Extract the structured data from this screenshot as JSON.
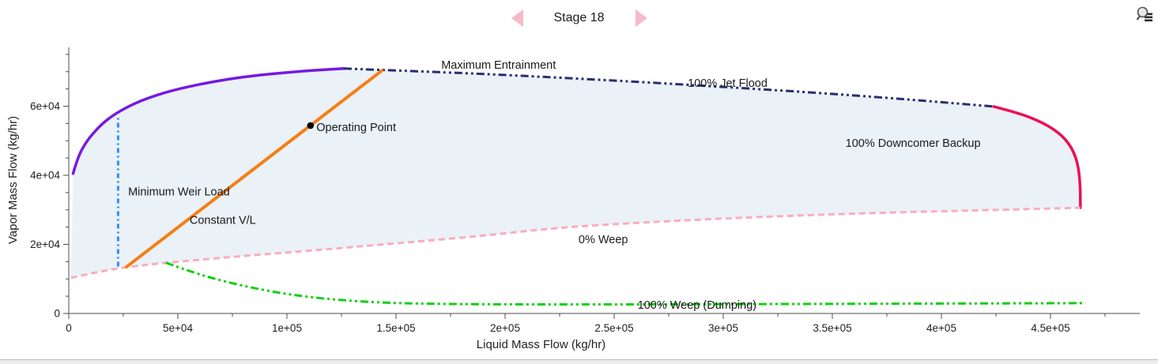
{
  "header": {
    "stage_label": "Stage 18",
    "arrow_color": "#F6B9C9"
  },
  "toolbar": {
    "zoom_properties_icon": "magnifier-with-list"
  },
  "chart_data": {
    "type": "line",
    "title": "",
    "xlabel": "Liquid Mass Flow (kg/hr)",
    "ylabel": "Vapor Mass Flow (kg/hr)",
    "xlim": [
      0,
      493000
    ],
    "ylim": [
      0,
      77000
    ],
    "grid": false,
    "legend": "inline-annotations",
    "x_axis": {
      "major_ticks": [
        0,
        50000,
        100000,
        150000,
        200000,
        250000,
        300000,
        350000,
        400000,
        450000
      ],
      "major_labels": [
        "0",
        "5e+04",
        "1e+05",
        "1.5e+05",
        "2e+05",
        "2.5e+05",
        "3e+05",
        "3.5e+05",
        "4e+05",
        "4.5e+05"
      ],
      "minor_step": 25000,
      "minor_max": 475000
    },
    "y_axis": {
      "major_ticks": [
        0,
        20000,
        40000,
        60000
      ],
      "major_labels": [
        "0",
        "2e+04",
        "4e+04",
        "6e+04"
      ],
      "minor_step": 5000,
      "minor_max": 75000
    },
    "region_fill": {
      "color": "#EAF1F7",
      "top_series": [
        "maximum-entrainment",
        "jet-flood",
        "downcomer-backup"
      ],
      "bottom_series": "weep-0"
    },
    "series": [
      {
        "name": "maximum-entrainment",
        "label": "Maximum Entrainment",
        "color": "#7619E1",
        "width": 3.5,
        "dash": "",
        "label_x": 197000,
        "label_y": 70900,
        "label_anchor": "middle",
        "points": [
          [
            2000,
            40500
          ],
          [
            4000,
            45000
          ],
          [
            8000,
            49800
          ],
          [
            14000,
            54200
          ],
          [
            20000,
            57300
          ],
          [
            28000,
            60200
          ],
          [
            38000,
            62800
          ],
          [
            50000,
            65000
          ],
          [
            65000,
            67000
          ],
          [
            80000,
            68500
          ],
          [
            95000,
            69500
          ],
          [
            110000,
            70300
          ],
          [
            126000,
            70900
          ]
        ]
      },
      {
        "name": "jet-flood",
        "label": "100% Jet Flood",
        "color": "#272E6E",
        "width": 3,
        "dash": "10 4 3 4 3 4",
        "label_x": 302000,
        "label_y": 65600,
        "label_anchor": "middle",
        "points": [
          [
            126000,
            70900
          ],
          [
            170000,
            69900
          ],
          [
            215000,
            68600
          ],
          [
            260000,
            67100
          ],
          [
            305000,
            65400
          ],
          [
            350000,
            63600
          ],
          [
            388000,
            61800
          ],
          [
            424000,
            59900
          ]
        ]
      },
      {
        "name": "downcomer-backup",
        "label": "100% Downcomer Backup",
        "color": "#EE0D55",
        "width": 3.5,
        "dash": "",
        "label_x": 387000,
        "label_y": 48200,
        "label_anchor": "middle",
        "points": [
          [
            424000,
            59900
          ],
          [
            436000,
            57900
          ],
          [
            446000,
            55400
          ],
          [
            453500,
            52500
          ],
          [
            458500,
            49200
          ],
          [
            461500,
            45500
          ],
          [
            463000,
            41500
          ],
          [
            463600,
            36800
          ],
          [
            463700,
            33000
          ],
          [
            463700,
            30600
          ]
        ]
      },
      {
        "name": "weep-0",
        "label": "0% Weep",
        "color": "#F9ADBE",
        "width": 3,
        "dash": "8 5",
        "label_x": 245000,
        "label_y": 20300,
        "label_anchor": "middle",
        "points": [
          [
            1000,
            10300
          ],
          [
            15000,
            12300
          ],
          [
            30000,
            13700
          ],
          [
            44500,
            14700
          ],
          [
            77000,
            16500
          ],
          [
            115000,
            18400
          ],
          [
            150000,
            20300
          ],
          [
            190000,
            22500
          ],
          [
            225000,
            24900
          ],
          [
            262000,
            26300
          ],
          [
            300000,
            27500
          ],
          [
            340000,
            28500
          ],
          [
            380000,
            29300
          ],
          [
            420000,
            29900
          ],
          [
            463700,
            30600
          ]
        ]
      },
      {
        "name": "weep-100",
        "label": "100% Weep (Dumping)",
        "color": "#0FD00F",
        "width": 3,
        "dash": "10 4 3 4 3 4",
        "label_x": 288000,
        "label_y": 1400,
        "label_anchor": "middle",
        "points": [
          [
            44500,
            14700
          ],
          [
            55000,
            12300
          ],
          [
            68000,
            9800
          ],
          [
            82000,
            7700
          ],
          [
            97000,
            5900
          ],
          [
            112000,
            4600
          ],
          [
            128000,
            3700
          ],
          [
            145000,
            3100
          ],
          [
            165000,
            2800
          ],
          [
            195000,
            2650
          ],
          [
            240000,
            2600
          ],
          [
            300000,
            2700
          ],
          [
            360000,
            2800
          ],
          [
            420000,
            2900
          ],
          [
            466000,
            3000
          ]
        ]
      },
      {
        "name": "minimum-weir-load",
        "label": "Minimum Weir Load",
        "color": "#2F8FE8",
        "width": 3,
        "dash": "6 4 2 4",
        "label_x": 27200,
        "label_y": 34200,
        "label_anchor": "start",
        "points": [
          [
            22600,
            13600
          ],
          [
            22600,
            57400
          ]
        ]
      },
      {
        "name": "constant-vl",
        "label": "Constant V/L",
        "color": "#F67E14",
        "width": 4,
        "dash": "",
        "label_x": 55400,
        "label_y": 26000,
        "label_anchor": "start",
        "points": [
          [
            26500,
            13500
          ],
          [
            143500,
            70300
          ]
        ]
      }
    ],
    "operating_point": {
      "x": 110800,
      "y": 54400,
      "label": "Operating Point",
      "label_x": 113500,
      "label_y": 52800,
      "color": "#000000"
    }
  }
}
